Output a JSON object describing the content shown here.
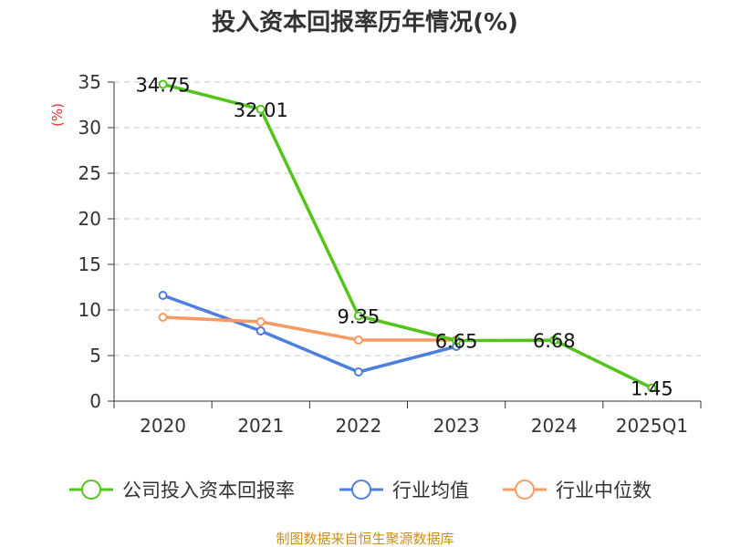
{
  "chart_data": {
    "type": "line",
    "title": "投入资本回报率历年情况(%)",
    "ylabel": "(%)",
    "xlabel": "",
    "categories": [
      "2020",
      "2021",
      "2022",
      "2023",
      "2024",
      "2025Q1"
    ],
    "ylim": [
      0,
      35
    ],
    "yticks": [
      0,
      5,
      10,
      15,
      20,
      25,
      30,
      35
    ],
    "grid": true,
    "legend_position": "bottom",
    "series": [
      {
        "name": "公司投入资本回报率",
        "color": "#52c41a",
        "values": [
          34.75,
          32.01,
          9.35,
          6.65,
          6.68,
          1.45
        ],
        "labels": [
          "34.75",
          "32.01",
          "9.35",
          "6.65",
          "6.68",
          "1.45"
        ]
      },
      {
        "name": "行业均值",
        "color": "#4e7fdc",
        "values": [
          11.6,
          7.7,
          3.2,
          6.0,
          null,
          null
        ]
      },
      {
        "name": "行业中位数",
        "color": "#f79a64",
        "values": [
          9.2,
          8.7,
          6.7,
          6.7,
          null,
          null
        ]
      }
    ]
  },
  "source": "制图数据来自恒生聚源数据库"
}
